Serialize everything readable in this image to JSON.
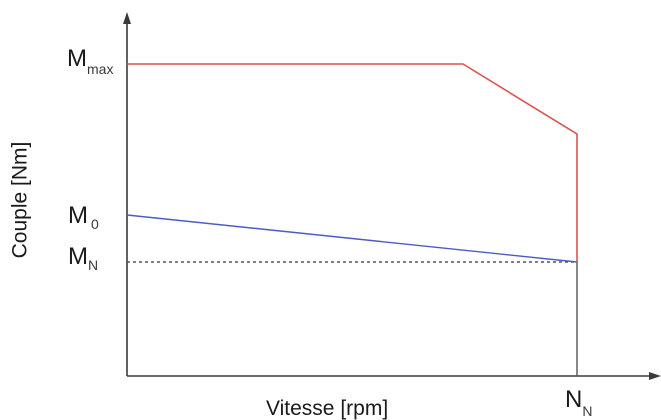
{
  "diagram": {
    "xlabel": "Vitesse [rpm]",
    "ylabel": "Couple [Nm]",
    "labels": {
      "mmax": {
        "main": "M",
        "sub": "max"
      },
      "m0": {
        "main": "M",
        "sub": "0"
      },
      "mn": {
        "main": "M",
        "sub": "N"
      },
      "nn": {
        "main": "N",
        "sub": "N"
      }
    },
    "colors": {
      "axis": "#3a3a3a",
      "max_curve": "#d9534f",
      "m0_curve": "#4a5bc4",
      "mn_line": "#555555"
    }
  }
}
